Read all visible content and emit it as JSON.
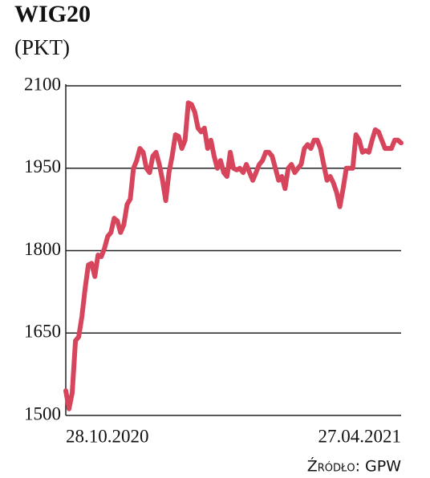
{
  "chart_data": {
    "type": "line",
    "title": "WIG20",
    "subtitle": "(PKT)",
    "source": "Źródło: GPW",
    "color": "#d6455c",
    "grid": true,
    "ylim": [
      1500,
      2100
    ],
    "yticks": [
      1500,
      1650,
      1800,
      1950,
      2100
    ],
    "categories": [
      "28.10.2020",
      null,
      null,
      null,
      null,
      null,
      null,
      null,
      null,
      null,
      null,
      null,
      null,
      null,
      null,
      null,
      null,
      null,
      null,
      null,
      null,
      null,
      null,
      null,
      null,
      null,
      null,
      null,
      null,
      null,
      null,
      null,
      null,
      null,
      null,
      null,
      null,
      null,
      null,
      null,
      null,
      null,
      null,
      null,
      null,
      null,
      null,
      null,
      null,
      null,
      null,
      null,
      null,
      null,
      null,
      null,
      null,
      null,
      null,
      null,
      null,
      null,
      null,
      null,
      null,
      null,
      null,
      null,
      null,
      null,
      null,
      null,
      null,
      null,
      null,
      null,
      null,
      null,
      null,
      null,
      null,
      null,
      null,
      null,
      null,
      null,
      null,
      null,
      null,
      null,
      null,
      null,
      null,
      null,
      null,
      null,
      null,
      null,
      null,
      null,
      null,
      null,
      null,
      null,
      "27.04.2021"
    ],
    "values": [
      1545,
      1512,
      1541,
      1636,
      1643,
      1680,
      1731,
      1774,
      1777,
      1753,
      1792,
      1789,
      1804,
      1826,
      1833,
      1859,
      1854,
      1833,
      1847,
      1884,
      1894,
      1950,
      1964,
      1986,
      1979,
      1950,
      1942,
      1972,
      1979,
      1957,
      1928,
      1891,
      1942,
      1972,
      2011,
      2008,
      1986,
      2001,
      2069,
      2066,
      2052,
      2023,
      2016,
      2023,
      1986,
      2001,
      1972,
      1950,
      1964,
      1942,
      1935,
      1979,
      1950,
      1947,
      1950,
      1942,
      1957,
      1942,
      1928,
      1942,
      1957,
      1964,
      1979,
      1979,
      1972,
      1950,
      1928,
      1935,
      1913,
      1950,
      1957,
      1942,
      1950,
      1957,
      1986,
      1993,
      1986,
      2001,
      2001,
      1986,
      1957,
      1928,
      1935,
      1923,
      1906,
      1880,
      1913,
      1950,
      1950,
      1950,
      2011,
      2001,
      1979,
      1982,
      1979,
      2001,
      2020,
      2016,
      2001,
      1986,
      1986,
      1986,
      2001,
      2001,
      1996
    ]
  }
}
